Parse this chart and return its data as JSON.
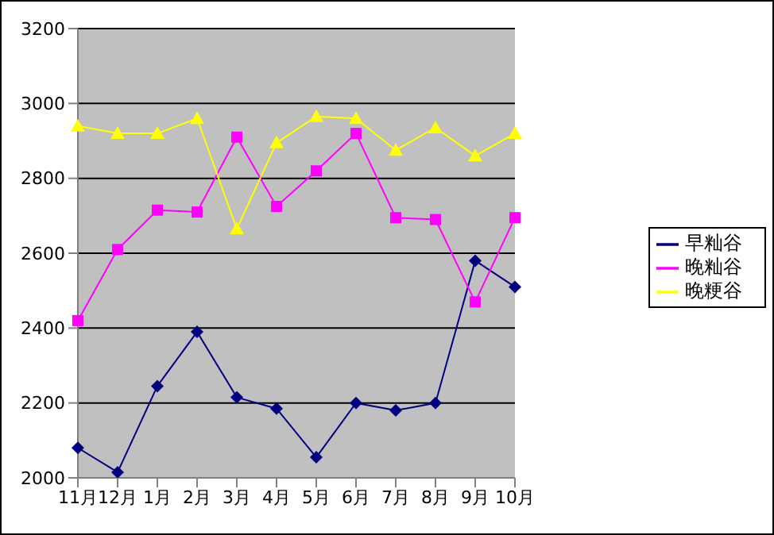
{
  "chart_data": {
    "type": "line",
    "categories": [
      "11月",
      "12月",
      "1月",
      "2月",
      "3月",
      "4月",
      "5月",
      "6月",
      "7月",
      "8月",
      "9月",
      "10月"
    ],
    "series": [
      {
        "name": "早籼谷",
        "color": "#000080",
        "marker": "diamond",
        "values": [
          2080,
          2015,
          2245,
          2390,
          2215,
          2185,
          2055,
          2200,
          2180,
          2200,
          2580,
          2510
        ]
      },
      {
        "name": "晚籼谷",
        "color": "#ff00ff",
        "marker": "square",
        "values": [
          2420,
          2610,
          2715,
          2710,
          2910,
          2725,
          2820,
          2920,
          2695,
          2690,
          2470,
          2695
        ]
      },
      {
        "name": "晚粳谷",
        "color": "#ffff00",
        "marker": "triangle",
        "values": [
          2940,
          2920,
          2920,
          2960,
          2665,
          2895,
          2965,
          2960,
          2875,
          2935,
          2860,
          2920
        ]
      }
    ],
    "ylim": [
      2000,
      3200
    ],
    "yticks": [
      2000,
      2200,
      2400,
      2600,
      2800,
      3000,
      3200
    ],
    "grid": "y",
    "legend": "right"
  }
}
